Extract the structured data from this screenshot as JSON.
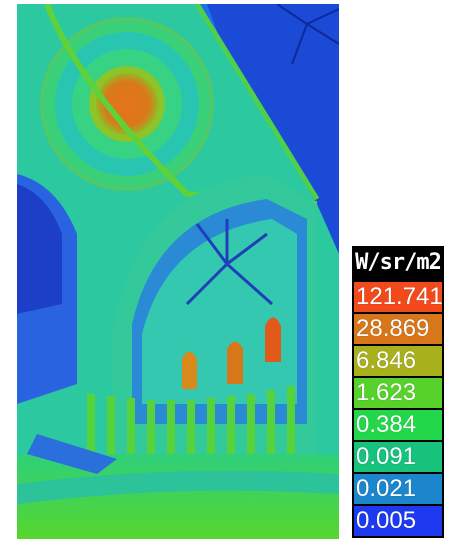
{
  "legend": {
    "unit": "W/sr/m2",
    "entries": [
      {
        "label": "121.741",
        "color": "#f24a1a"
      },
      {
        "label": "28.869",
        "color": "#d8761a"
      },
      {
        "label": "6.846",
        "color": "#a8b11c"
      },
      {
        "label": "1.623",
        "color": "#56d22a"
      },
      {
        "label": "0.384",
        "color": "#22d84a"
      },
      {
        "label": "0.091",
        "color": "#16c27c"
      },
      {
        "label": "0.021",
        "color": "#1c86cc"
      },
      {
        "label": "0.005",
        "color": "#1d3af0"
      }
    ]
  }
}
